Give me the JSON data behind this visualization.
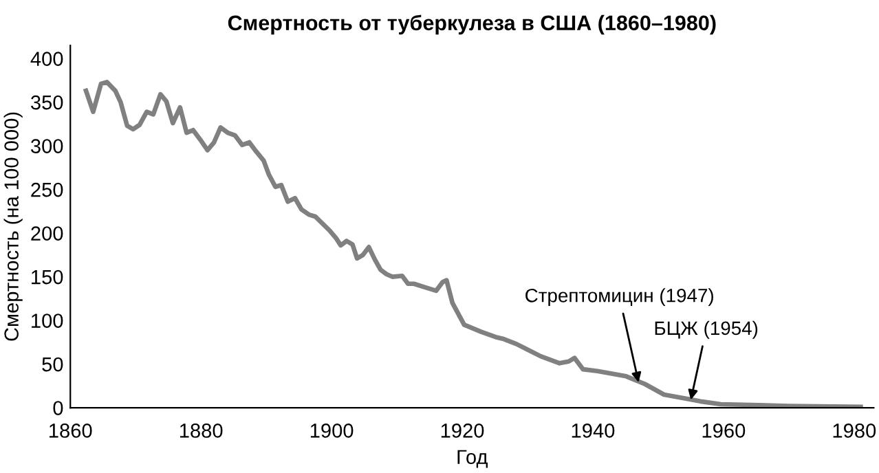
{
  "chart_data": {
    "type": "line",
    "title": "Смертность от туберкулеза в США (1860–1980)",
    "xlabel": "Год",
    "ylabel": "Смертность (на 100 000)",
    "x": [
      1862.4,
      1863.5,
      1864.7,
      1865.6,
      1866.9,
      1867.7,
      1868.7,
      1869.6,
      1870.6,
      1871.7,
      1872.7,
      1873.8,
      1874.7,
      1875.7,
      1876.8,
      1877.8,
      1878.8,
      1879.9,
      1881.0,
      1882.0,
      1883.0,
      1884.1,
      1885.2,
      1886.3,
      1887.4,
      1888.4,
      1889.6,
      1890.4,
      1891.4,
      1892.3,
      1893.3,
      1894.4,
      1895.4,
      1896.6,
      1897.5,
      1898.6,
      1899.7,
      1900.7,
      1901.4,
      1902.3,
      1903.2,
      1903.9,
      1904.8,
      1905.7,
      1906.6,
      1907.5,
      1908.4,
      1909.3,
      1910.8,
      1911.7,
      1912.6,
      1914.3,
      1916.0,
      1917.0,
      1917.6,
      1918.5,
      1920.3,
      1922.9,
      1925.1,
      1926.2,
      1928.3,
      1932.0,
      1934.9,
      1936.3,
      1937.2,
      1938.5,
      1940.7,
      1945.1,
      1948.0,
      1950.9,
      1953.8,
      1956.7,
      1959.6,
      1965.5,
      1970.0,
      1981.0
    ],
    "series": [
      {
        "color": "#808080",
        "values": [
          363,
          339,
          371,
          373,
          363,
          350,
          323,
          319,
          324,
          339,
          336,
          359,
          351,
          326,
          344,
          315,
          318,
          307,
          295,
          304,
          321,
          315,
          312,
          301,
          304,
          294,
          283,
          267,
          253,
          255,
          236,
          240,
          227,
          221,
          219,
          211,
          203,
          194,
          186,
          191,
          187,
          171,
          175,
          184,
          170,
          158,
          153,
          150,
          151,
          142,
          142,
          138,
          134,
          144,
          146,
          120,
          95,
          87,
          81,
          79,
          73,
          59,
          51,
          53,
          57,
          44,
          42,
          36,
          27,
          15,
          11,
          7,
          4,
          3,
          2,
          1
        ]
      }
    ],
    "xlim": [
      1860,
      1983
    ],
    "ylim": [
      0,
      415
    ],
    "xticks": [
      1860,
      1880,
      1900,
      1920,
      1940,
      1960,
      1980
    ],
    "yticks": [
      0,
      50,
      100,
      150,
      200,
      250,
      300,
      350,
      400
    ],
    "grid": false,
    "legend": false,
    "marker": "none",
    "line_style": "solid",
    "annotations": [
      {
        "text": "Стрептомицин (1947)",
        "x": 1947,
        "y": 29
      },
      {
        "text": "БЦЖ (1954)",
        "x": 1955,
        "y": 9
      }
    ]
  }
}
